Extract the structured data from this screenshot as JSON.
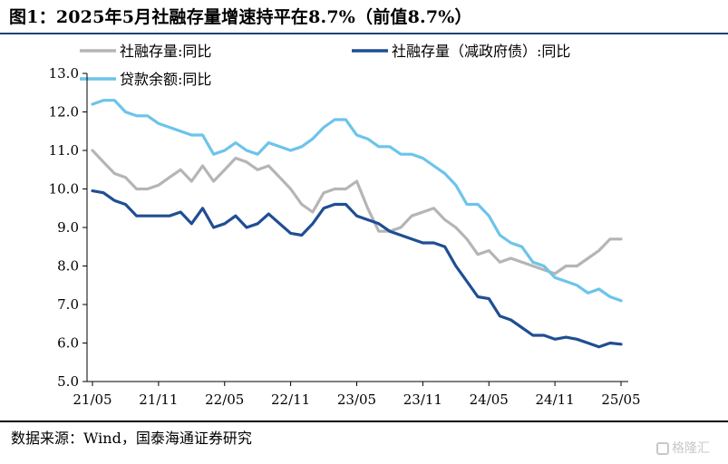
{
  "figure": {
    "title": "图1：2025年5月社融存量增速持平在8.7%（前值8.7%）",
    "source": "数据来源：Wind，国泰海通证券研究",
    "watermark": "格隆汇"
  },
  "chart_data": {
    "type": "line",
    "title": "图1：2025年5月社融存量增速持平在8.7%（前值8.7%）",
    "xlabel": "",
    "ylabel": "",
    "ylim": [
      5.0,
      13.0
    ],
    "yticks": [
      "13.0",
      "12.0",
      "11.0",
      "10.0",
      "9.0",
      "8.0",
      "7.0",
      "6.0",
      "5.0"
    ],
    "yticks_values": [
      13,
      12,
      11,
      10,
      9,
      8,
      7,
      6,
      5
    ],
    "xticks": [
      "21/05",
      "21/11",
      "22/05",
      "22/11",
      "23/05",
      "23/11",
      "24/05",
      "24/11",
      "25/05"
    ],
    "xticks_index": [
      0,
      6,
      12,
      18,
      24,
      30,
      36,
      42,
      48
    ],
    "x": [
      "21/05",
      "21/06",
      "21/07",
      "21/08",
      "21/09",
      "21/10",
      "21/11",
      "21/12",
      "22/01",
      "22/02",
      "22/03",
      "22/04",
      "22/05",
      "22/06",
      "22/07",
      "22/08",
      "22/09",
      "22/10",
      "22/11",
      "22/12",
      "23/01",
      "23/02",
      "23/03",
      "23/04",
      "23/05",
      "23/06",
      "23/07",
      "23/08",
      "23/09",
      "23/10",
      "23/11",
      "23/12",
      "24/01",
      "24/02",
      "24/03",
      "24/04",
      "24/05",
      "24/06",
      "24/07",
      "24/08",
      "24/09",
      "24/10",
      "24/11",
      "24/12",
      "25/01",
      "25/02",
      "25/03",
      "25/04",
      "25/05"
    ],
    "grid": false,
    "legend_position": "top",
    "series": [
      {
        "name": "社融存量:同比",
        "color": "#b5b5b5",
        "values": [
          11.0,
          10.7,
          10.4,
          10.3,
          10.0,
          10.0,
          10.1,
          10.3,
          10.5,
          10.2,
          10.6,
          10.2,
          10.5,
          10.8,
          10.7,
          10.5,
          10.6,
          10.3,
          10.0,
          9.6,
          9.4,
          9.9,
          10.0,
          10.0,
          10.2,
          9.5,
          8.9,
          8.9,
          9.0,
          9.3,
          9.4,
          9.5,
          9.2,
          9.0,
          8.7,
          8.3,
          8.4,
          8.1,
          8.2,
          8.1,
          8.0,
          7.9,
          7.8,
          8.0,
          8.0,
          8.2,
          8.4,
          8.7,
          8.7
        ]
      },
      {
        "name": "社融存量（减政府债）:同比",
        "color": "#1f4e93",
        "values": [
          9.95,
          9.9,
          9.7,
          9.6,
          9.3,
          9.3,
          9.3,
          9.3,
          9.4,
          9.1,
          9.5,
          9.0,
          9.1,
          9.3,
          9.0,
          9.1,
          9.35,
          9.1,
          8.85,
          8.8,
          9.1,
          9.5,
          9.6,
          9.6,
          9.3,
          9.2,
          9.1,
          8.9,
          8.8,
          8.7,
          8.6,
          8.6,
          8.5,
          8.0,
          7.6,
          7.2,
          7.15,
          6.7,
          6.6,
          6.4,
          6.2,
          6.2,
          6.1,
          6.15,
          6.1,
          6.0,
          5.9,
          6.0,
          5.97
        ]
      },
      {
        "name": "贷款余额:同比",
        "color": "#6cc4ea",
        "values": [
          12.2,
          12.3,
          12.3,
          12.0,
          11.9,
          11.9,
          11.7,
          11.6,
          11.5,
          11.4,
          11.4,
          10.9,
          11.0,
          11.2,
          11.0,
          10.9,
          11.2,
          11.1,
          11.0,
          11.1,
          11.3,
          11.6,
          11.8,
          11.8,
          11.4,
          11.3,
          11.1,
          11.1,
          10.9,
          10.9,
          10.8,
          10.6,
          10.4,
          10.1,
          9.6,
          9.6,
          9.3,
          8.8,
          8.6,
          8.5,
          8.1,
          8.0,
          7.7,
          7.6,
          7.5,
          7.3,
          7.4,
          7.2,
          7.1
        ]
      }
    ]
  }
}
